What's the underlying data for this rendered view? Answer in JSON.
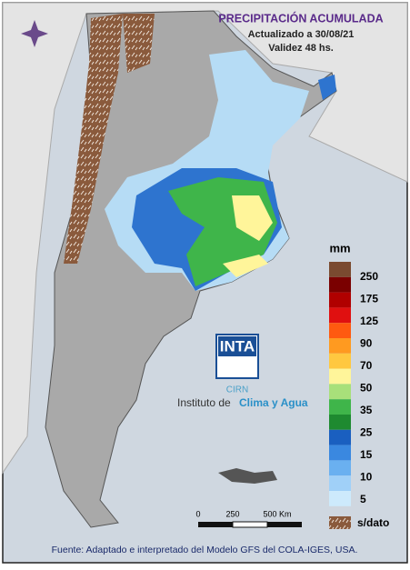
{
  "header": {
    "title": "PRECIPITACIÓN ACUMULADA",
    "updated": "Actualizado a 30/08/21",
    "validity": "Validez 48 hs."
  },
  "legend": {
    "unit": "mm",
    "labels": [
      250,
      175,
      125,
      90,
      70,
      50,
      35,
      25,
      15,
      10,
      5
    ],
    "nodata": "s/dato"
  },
  "logo": {
    "brand": "INTA",
    "sub": "CIRN",
    "institute_prefix": "Instituto de",
    "institute_name": "Clima y Agua"
  },
  "scale_bar": {
    "labels": [
      0,
      250,
      "500 Km"
    ]
  },
  "footer": "Fuente: Adaptado e interpretado del Modelo GFS del COLA-IGES, USA."
}
